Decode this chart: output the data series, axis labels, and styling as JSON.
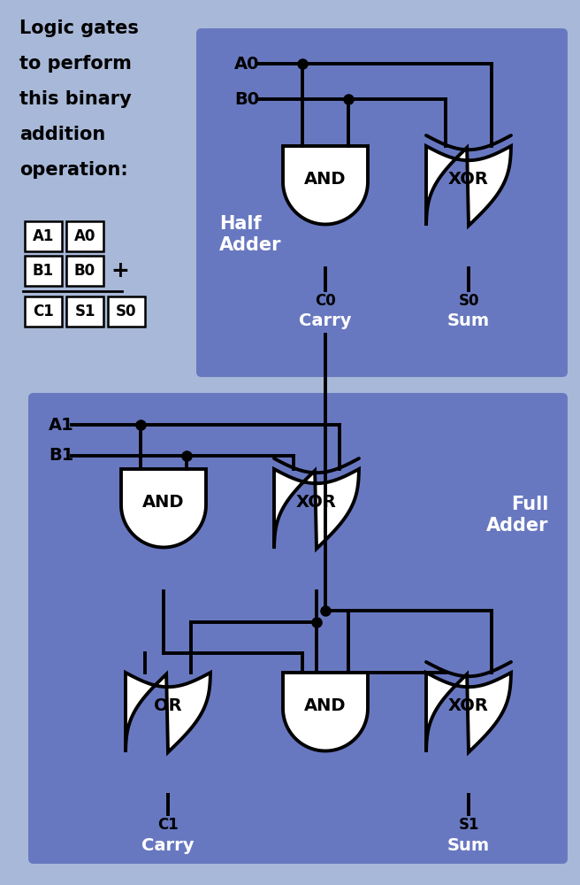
{
  "bg_color": "#a8b8d8",
  "box_blue": "#6878c0",
  "line_color": "#000000",
  "white": "#ffffff",
  "title_text": [
    "Logic gates",
    "to perform",
    "this binary",
    "addition",
    "operation:"
  ],
  "row1_labels": [
    "A1",
    "A0"
  ],
  "row2_labels": [
    "B1",
    "B0"
  ],
  "row3_labels": [
    "C1",
    "S1",
    "S0"
  ]
}
